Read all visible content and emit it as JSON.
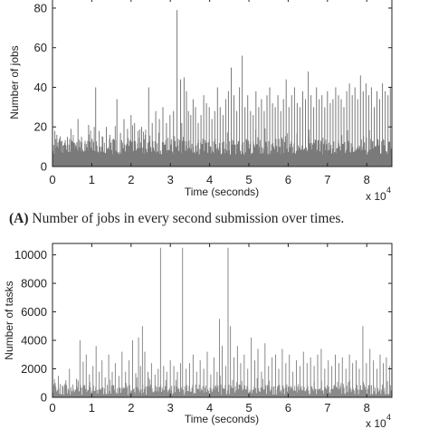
{
  "caption_a": {
    "letter": "(A)",
    "text": "Number of jobs in every second submission over times."
  },
  "chart_data": [
    {
      "type": "bar",
      "xlabel": "Time (seconds)",
      "ylabel": "Number of jobs",
      "x_multiplier": "x 10",
      "x_multiplier_exp": "4",
      "xlim": [
        0,
        86400
      ],
      "ylim": [
        0,
        85
      ],
      "xticks": [
        0,
        1,
        2,
        3,
        4,
        5,
        6,
        7,
        8
      ],
      "yticks": [
        0,
        20,
        40,
        60,
        80
      ],
      "color": "#7a7a7a",
      "baseline_band": [
        6,
        14
      ],
      "series": [
        {
          "x": [
            600,
            1100,
            1700,
            2400,
            3100,
            3800,
            4700,
            5600,
            6500,
            7400,
            8300,
            9200,
            10100,
            11000,
            11900,
            12800,
            13700,
            14600,
            15500,
            16400,
            17300,
            18200,
            19100,
            20000,
            20900,
            21800,
            22700,
            23600,
            24500,
            25400,
            26300,
            27200,
            28100,
            29000,
            29900,
            30800,
            31700,
            32600,
            32900,
            33500,
            34100,
            34600,
            35200,
            35800,
            36400,
            37100,
            37800,
            38500,
            39200,
            39900,
            40600,
            41300,
            42000,
            42700,
            43400,
            44100,
            44800,
            45500,
            46200,
            46900,
            47600,
            48300,
            49000,
            49700,
            50400,
            51100,
            51800,
            52500,
            53200,
            53900,
            54600,
            55300,
            56000,
            56700,
            57400,
            58100,
            58800,
            59500,
            60200,
            60900,
            61600,
            62300,
            63000,
            63700,
            64400,
            65100,
            65800,
            66500,
            67200,
            67900,
            68600,
            69300,
            70000,
            70700,
            71400,
            72100,
            72800,
            73500,
            74200,
            74900,
            75600,
            76300,
            77000,
            77700,
            78400,
            79100,
            79800,
            80500,
            81200,
            81900,
            82600,
            83300,
            84000,
            84700,
            85400,
            86000
          ],
          "y": [
            18,
            16,
            14,
            13,
            12,
            15,
            19,
            12,
            24,
            15,
            13,
            21,
            14,
            40,
            18,
            15,
            20,
            16,
            14,
            34,
            17,
            24,
            19,
            26,
            22,
            18,
            20,
            16,
            40,
            22,
            28,
            24,
            30,
            22,
            26,
            28,
            79,
            44,
            22,
            45,
            38,
            28,
            26,
            34,
            30,
            22,
            26,
            36,
            32,
            30,
            24,
            28,
            40,
            30,
            26,
            34,
            38,
            50,
            36,
            28,
            40,
            56,
            30,
            36,
            28,
            26,
            38,
            30,
            34,
            28,
            36,
            40,
            32,
            30,
            36,
            28,
            34,
            44,
            30,
            36,
            40,
            32,
            30,
            38,
            34,
            48,
            36,
            30,
            40,
            34,
            36,
            30,
            38,
            32,
            34,
            40,
            36,
            34,
            30,
            38,
            42,
            36,
            40,
            34,
            46,
            38,
            42,
            36,
            40,
            30,
            38,
            34,
            42,
            38,
            36,
            40
          ]
        }
      ]
    },
    {
      "type": "bar",
      "xlabel": "Time (seconds)",
      "ylabel": "Number of tasks",
      "x_multiplier": "x 10",
      "x_multiplier_exp": "4",
      "xlim": [
        0,
        86400
      ],
      "ylim": [
        0,
        10800
      ],
      "xticks": [
        0,
        1,
        2,
        3,
        4,
        5,
        6,
        7,
        8
      ],
      "yticks": [
        0,
        2000,
        4000,
        6000,
        8000,
        10000
      ],
      "color": "#8a8a8a",
      "baseline_band": [
        150,
        900
      ],
      "series": [
        {
          "x": [
            700,
            1500,
            2600,
            3400,
            4300,
            5200,
            6100,
            6500,
            7000,
            7800,
            8600,
            9400,
            10300,
            11100,
            11900,
            12600,
            13400,
            14300,
            15200,
            16000,
            16900,
            17700,
            18600,
            19500,
            20400,
            21200,
            21900,
            22400,
            22900,
            23500,
            24300,
            25200,
            26100,
            26900,
            27500,
            28300,
            29100,
            30000,
            30900,
            31800,
            32600,
            33100,
            34000,
            34900,
            35800,
            36700,
            37600,
            38500,
            39400,
            40300,
            41100,
            41900,
            42500,
            43200,
            44100,
            44700,
            45300,
            46200,
            47100,
            47900,
            48800,
            49700,
            50600,
            51500,
            52300,
            53200,
            54100,
            55000,
            55900,
            56800,
            57600,
            58500,
            59400,
            60300,
            61200,
            62100,
            63000,
            63900,
            64800,
            65700,
            66600,
            67500,
            68400,
            69300,
            70200,
            71100,
            72000,
            72900,
            73800,
            74700,
            75600,
            76400,
            77300,
            78100,
            79000,
            79900,
            80800,
            81700,
            82600,
            83400,
            84200,
            85000,
            85800
          ],
          "y": [
            1000,
            1500,
            800,
            1200,
            2000,
            900,
            1300,
            1200,
            4000,
            2500,
            3000,
            1600,
            2200,
            3600,
            1800,
            2600,
            1400,
            3000,
            1800,
            2400,
            1500,
            3200,
            1800,
            2600,
            4000,
            1700,
            4200,
            2200,
            5000,
            3200,
            1800,
            2400,
            1600,
            2000,
            10500,
            2200,
            1800,
            2600,
            2200,
            1800,
            2400,
            10500,
            2000,
            2400,
            3000,
            1800,
            2600,
            2000,
            3200,
            1600,
            2800,
            1800,
            5500,
            3600,
            2200,
            10500,
            5000,
            2800,
            3600,
            2400,
            3000,
            2000,
            4200,
            2600,
            3400,
            1800,
            3800,
            2200,
            2800,
            3000,
            2000,
            3400,
            2400,
            3000,
            1800,
            2600,
            2200,
            3200,
            2400,
            2800,
            2200,
            3000,
            3400,
            2000,
            2600,
            2200,
            3000,
            2400,
            2800,
            2000,
            3000,
            2400,
            2600,
            2000,
            5000,
            2400,
            3400,
            2600,
            2000,
            3000,
            2400,
            2800,
            2200
          ]
        }
      ]
    }
  ]
}
